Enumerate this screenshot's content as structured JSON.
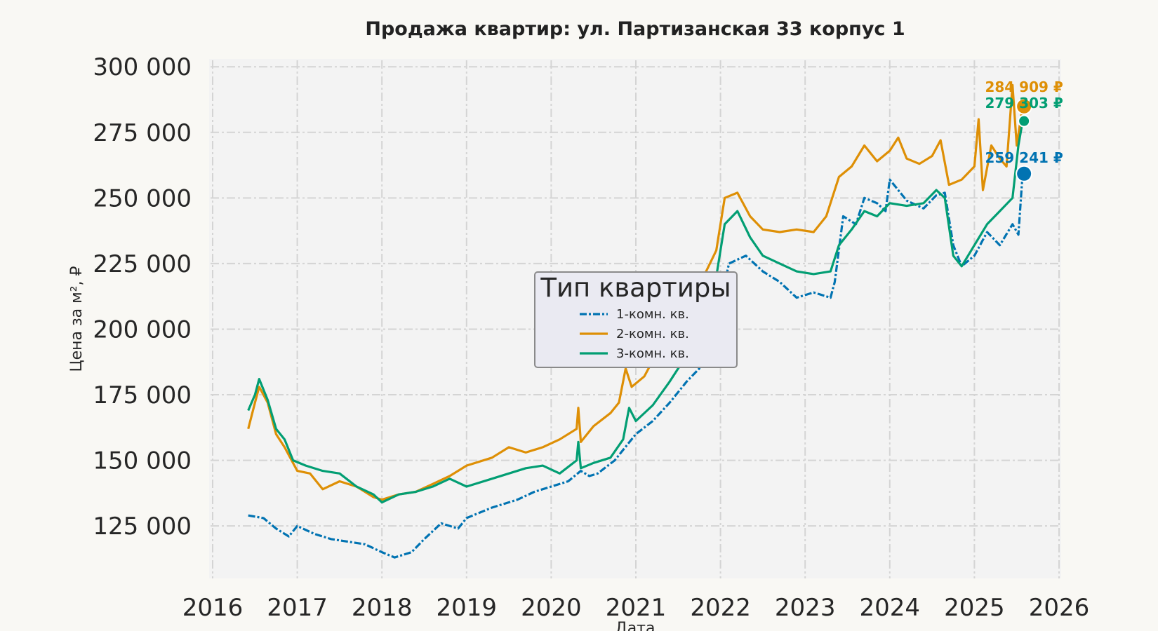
{
  "chart_data": {
    "type": "line",
    "title": "Продажа квартир: ул. Партизанская 33 корпус 1",
    "xlabel": "Дата",
    "ylabel": "Цена за м², ₽",
    "xlim": [
      2016,
      2026
    ],
    "ylim": [
      105000,
      303000
    ],
    "x_ticks": [
      "2016",
      "2017",
      "2018",
      "2019",
      "2020",
      "2021",
      "2022",
      "2023",
      "2024",
      "2025",
      "2026"
    ],
    "y_ticks": [
      {
        "value": 125000,
        "label": "125 000"
      },
      {
        "value": 150000,
        "label": "150 000"
      },
      {
        "value": 175000,
        "label": "175 000"
      },
      {
        "value": 200000,
        "label": "200 000"
      },
      {
        "value": 225000,
        "label": "225 000"
      },
      {
        "value": 250000,
        "label": "250 000"
      },
      {
        "value": 275000,
        "label": "275 000"
      },
      {
        "value": 300000,
        "label": "300 000"
      }
    ],
    "grid": true,
    "legend": {
      "title": "Тип квартиры",
      "placement": "center"
    },
    "series": [
      {
        "name": "1-комн. кв.",
        "color": "#0173b2",
        "style": "dashdot",
        "end_label": "259 241 ₽",
        "end_value": 259241,
        "points": [
          [
            2016.42,
            129000
          ],
          [
            2016.6,
            128000
          ],
          [
            2016.75,
            124000
          ],
          [
            2016.9,
            121000
          ],
          [
            2017.0,
            125000
          ],
          [
            2017.2,
            122000
          ],
          [
            2017.4,
            120000
          ],
          [
            2017.6,
            119000
          ],
          [
            2017.8,
            118000
          ],
          [
            2018.0,
            115000
          ],
          [
            2018.15,
            113000
          ],
          [
            2018.35,
            115000
          ],
          [
            2018.5,
            120000
          ],
          [
            2018.7,
            126000
          ],
          [
            2018.9,
            124000
          ],
          [
            2019.0,
            128000
          ],
          [
            2019.3,
            132000
          ],
          [
            2019.6,
            135000
          ],
          [
            2019.8,
            138000
          ],
          [
            2020.0,
            140000
          ],
          [
            2020.2,
            142000
          ],
          [
            2020.35,
            146000
          ],
          [
            2020.45,
            144000
          ],
          [
            2020.55,
            145000
          ],
          [
            2020.75,
            150000
          ],
          [
            2021.0,
            160000
          ],
          [
            2021.2,
            165000
          ],
          [
            2021.4,
            172000
          ],
          [
            2021.6,
            180000
          ],
          [
            2021.75,
            185000
          ],
          [
            2021.85,
            197000
          ],
          [
            2022.0,
            210000
          ],
          [
            2022.1,
            225000
          ],
          [
            2022.3,
            228000
          ],
          [
            2022.5,
            222000
          ],
          [
            2022.7,
            218000
          ],
          [
            2022.9,
            212000
          ],
          [
            2023.1,
            214000
          ],
          [
            2023.3,
            212000
          ],
          [
            2023.35,
            218000
          ],
          [
            2023.45,
            243000
          ],
          [
            2023.6,
            240000
          ],
          [
            2023.7,
            250000
          ],
          [
            2023.85,
            248000
          ],
          [
            2023.95,
            245000
          ],
          [
            2024.0,
            257000
          ],
          [
            2024.2,
            249000
          ],
          [
            2024.4,
            246000
          ],
          [
            2024.55,
            251000
          ],
          [
            2024.65,
            252000
          ],
          [
            2024.75,
            232000
          ],
          [
            2024.85,
            224000
          ],
          [
            2025.0,
            228000
          ],
          [
            2025.15,
            237000
          ],
          [
            2025.3,
            232000
          ],
          [
            2025.45,
            240000
          ],
          [
            2025.52,
            236000
          ],
          [
            2025.57,
            259241
          ]
        ]
      },
      {
        "name": "2-комн. кв.",
        "color": "#de8f05",
        "style": "solid",
        "end_label": "284 909 ₽",
        "end_value": 284909,
        "points": [
          [
            2016.42,
            162000
          ],
          [
            2016.5,
            172000
          ],
          [
            2016.55,
            178000
          ],
          [
            2016.65,
            172000
          ],
          [
            2016.75,
            160000
          ],
          [
            2016.85,
            155000
          ],
          [
            2017.0,
            146000
          ],
          [
            2017.15,
            145000
          ],
          [
            2017.3,
            139000
          ],
          [
            2017.5,
            142000
          ],
          [
            2017.7,
            140000
          ],
          [
            2017.9,
            136000
          ],
          [
            2018.0,
            135000
          ],
          [
            2018.2,
            137000
          ],
          [
            2018.4,
            138000
          ],
          [
            2018.6,
            141000
          ],
          [
            2018.8,
            144000
          ],
          [
            2019.0,
            148000
          ],
          [
            2019.3,
            151000
          ],
          [
            2019.5,
            155000
          ],
          [
            2019.7,
            153000
          ],
          [
            2019.9,
            155000
          ],
          [
            2020.1,
            158000
          ],
          [
            2020.3,
            162000
          ],
          [
            2020.32,
            170000
          ],
          [
            2020.35,
            157000
          ],
          [
            2020.5,
            163000
          ],
          [
            2020.7,
            168000
          ],
          [
            2020.8,
            172000
          ],
          [
            2020.88,
            185000
          ],
          [
            2020.95,
            178000
          ],
          [
            2021.1,
            182000
          ],
          [
            2021.2,
            188000
          ],
          [
            2021.4,
            195000
          ],
          [
            2021.6,
            205000
          ],
          [
            2021.8,
            220000
          ],
          [
            2021.95,
            230000
          ],
          [
            2022.05,
            250000
          ],
          [
            2022.2,
            252000
          ],
          [
            2022.35,
            243000
          ],
          [
            2022.5,
            238000
          ],
          [
            2022.7,
            237000
          ],
          [
            2022.9,
            238000
          ],
          [
            2023.1,
            237000
          ],
          [
            2023.25,
            243000
          ],
          [
            2023.4,
            258000
          ],
          [
            2023.55,
            262000
          ],
          [
            2023.7,
            270000
          ],
          [
            2023.85,
            264000
          ],
          [
            2024.0,
            268000
          ],
          [
            2024.1,
            273000
          ],
          [
            2024.2,
            265000
          ],
          [
            2024.35,
            263000
          ],
          [
            2024.5,
            266000
          ],
          [
            2024.6,
            272000
          ],
          [
            2024.7,
            255000
          ],
          [
            2024.85,
            257000
          ],
          [
            2025.0,
            262000
          ],
          [
            2025.05,
            280000
          ],
          [
            2025.1,
            253000
          ],
          [
            2025.2,
            270000
          ],
          [
            2025.3,
            265000
          ],
          [
            2025.38,
            262000
          ],
          [
            2025.45,
            293000
          ],
          [
            2025.5,
            270000
          ],
          [
            2025.57,
            284909
          ]
        ]
      },
      {
        "name": "3-комн. кв.",
        "color": "#029e73",
        "style": "solid",
        "end_label": "279 303 ₽",
        "end_value": 279303,
        "points": [
          [
            2016.42,
            169000
          ],
          [
            2016.5,
            175000
          ],
          [
            2016.55,
            181000
          ],
          [
            2016.65,
            173000
          ],
          [
            2016.75,
            162000
          ],
          [
            2016.85,
            158000
          ],
          [
            2016.95,
            150000
          ],
          [
            2017.1,
            148000
          ],
          [
            2017.3,
            146000
          ],
          [
            2017.5,
            145000
          ],
          [
            2017.7,
            140000
          ],
          [
            2017.9,
            137000
          ],
          [
            2018.0,
            134000
          ],
          [
            2018.2,
            137000
          ],
          [
            2018.4,
            138000
          ],
          [
            2018.6,
            140000
          ],
          [
            2018.8,
            143000
          ],
          [
            2019.0,
            140000
          ],
          [
            2019.3,
            143000
          ],
          [
            2019.5,
            145000
          ],
          [
            2019.7,
            147000
          ],
          [
            2019.9,
            148000
          ],
          [
            2020.1,
            145000
          ],
          [
            2020.3,
            150000
          ],
          [
            2020.32,
            157000
          ],
          [
            2020.35,
            147000
          ],
          [
            2020.5,
            149000
          ],
          [
            2020.7,
            151000
          ],
          [
            2020.85,
            158000
          ],
          [
            2020.92,
            170000
          ],
          [
            2021.0,
            165000
          ],
          [
            2021.2,
            171000
          ],
          [
            2021.4,
            180000
          ],
          [
            2021.6,
            190000
          ],
          [
            2021.75,
            195000
          ],
          [
            2021.85,
            205000
          ],
          [
            2021.95,
            220000
          ],
          [
            2022.05,
            240000
          ],
          [
            2022.2,
            245000
          ],
          [
            2022.35,
            235000
          ],
          [
            2022.5,
            228000
          ],
          [
            2022.7,
            225000
          ],
          [
            2022.9,
            222000
          ],
          [
            2023.1,
            221000
          ],
          [
            2023.3,
            222000
          ],
          [
            2023.4,
            232000
          ],
          [
            2023.55,
            238000
          ],
          [
            2023.7,
            245000
          ],
          [
            2023.85,
            243000
          ],
          [
            2024.0,
            248000
          ],
          [
            2024.2,
            247000
          ],
          [
            2024.4,
            248000
          ],
          [
            2024.55,
            253000
          ],
          [
            2024.65,
            250000
          ],
          [
            2024.75,
            228000
          ],
          [
            2024.85,
            224000
          ],
          [
            2025.0,
            232000
          ],
          [
            2025.15,
            240000
          ],
          [
            2025.3,
            245000
          ],
          [
            2025.45,
            250000
          ],
          [
            2025.52,
            270000
          ],
          [
            2025.57,
            279303
          ]
        ]
      }
    ]
  }
}
